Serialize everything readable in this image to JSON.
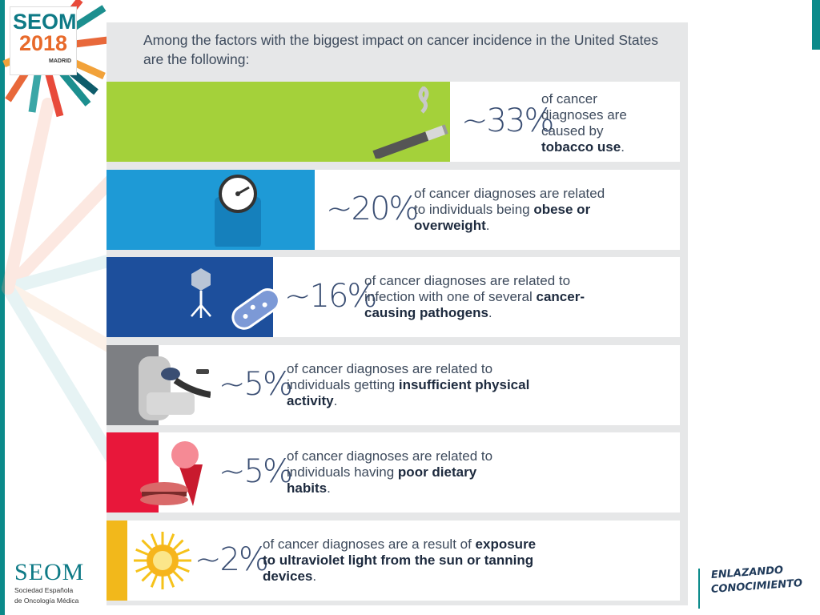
{
  "logo": {
    "seom": "SEOM",
    "year": "2018",
    "city": "MADRID"
  },
  "footer_logo": {
    "name": "SEOM",
    "line1": "Sociedad Española",
    "line2": "de Oncología Médica"
  },
  "slogan": {
    "line1": "ENLAZANDO",
    "line2": "CONOCIMIENTO"
  },
  "colors": {
    "teal": "#0b8a8a",
    "text": "#3d4a5c",
    "percent": "#3a4e73"
  },
  "chart_data": {
    "type": "bar",
    "title": "Among the factors with the biggest impact on cancer incidence in the United States are the following:",
    "categories": [
      "tobacco use",
      "obese or overweight",
      "cancer-causing pathogens",
      "insufficient physical activity",
      "poor dietary habits",
      "exposure to ultraviolet light from the sun or tanning devices"
    ],
    "values": [
      33,
      20,
      16,
      5,
      5,
      2
    ],
    "value_labels": [
      "~33%",
      "~20%",
      "~16%",
      "~5%",
      "~5%",
      "~2%"
    ],
    "bar_colors": [
      "#a4d13a",
      "#1e9ad6",
      "#1d4f9c",
      "#7d7f83",
      "#e8173a",
      "#f2b81b"
    ],
    "icons": [
      "cigarette-icon",
      "bathroom-scale-icon",
      "virus-bacteria-icon",
      "couch-person-icon",
      "burger-icecream-icon",
      "sun-icon"
    ],
    "descriptions": [
      {
        "pre": "of cancer diagnoses are caused by ",
        "bold": "tobacco use",
        "post": "."
      },
      {
        "pre": "of cancer diagnoses are related to individuals being ",
        "bold": "obese or overweight",
        "post": "."
      },
      {
        "pre": "of cancer diagnoses are related to infection with one of several ",
        "bold": "cancer-causing pathogens",
        "post": "."
      },
      {
        "pre": "of cancer diagnoses are related to individuals getting ",
        "bold": "insufficient physical activity",
        "post": "."
      },
      {
        "pre": "of cancer diagnoses are related to individuals having ",
        "bold": "poor dietary habits",
        "post": "."
      },
      {
        "pre": "of cancer diagnoses are a result of ",
        "bold": "exposure to ultraviolet light from the sun or tanning devices",
        "post": "."
      }
    ]
  }
}
